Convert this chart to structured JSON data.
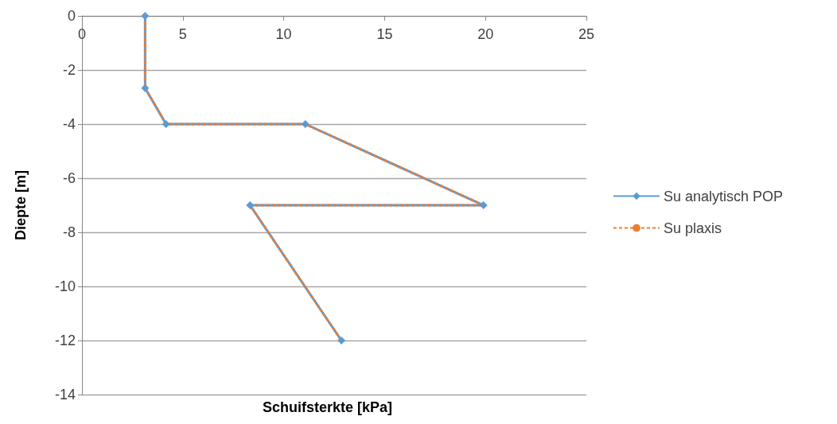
{
  "chart_data": {
    "type": "line",
    "xlabel": "Schuifsterkte [kPa]",
    "ylabel": "Diepte [m]",
    "xlim": [
      0,
      25
    ],
    "xticks": [
      0,
      5,
      10,
      15,
      20,
      25
    ],
    "ylim": [
      -14,
      0
    ],
    "yticks": [
      -14,
      -12,
      -10,
      -8,
      -6,
      -4,
      -2,
      0
    ],
    "grid": "y",
    "legend": "right",
    "series": [
      {
        "name": "Su analytisch POP",
        "color": "#5b9bd5",
        "marker": "diamond",
        "line_style": "solid",
        "x": [
          3.13,
          3.13,
          4.17,
          11.07,
          19.9,
          8.33,
          12.86
        ],
        "values": [
          0,
          -2.67,
          -4,
          -4,
          -7,
          -7,
          -12
        ]
      },
      {
        "name": "Su plaxis",
        "color": "#ed7d31",
        "marker": "none",
        "line_style": "dashed",
        "x": [
          3.13,
          3.13,
          4.17,
          11.07,
          19.9,
          8.33,
          12.86
        ],
        "values": [
          0,
          -2.67,
          -4,
          -4,
          -7,
          -7,
          -12
        ]
      }
    ]
  }
}
